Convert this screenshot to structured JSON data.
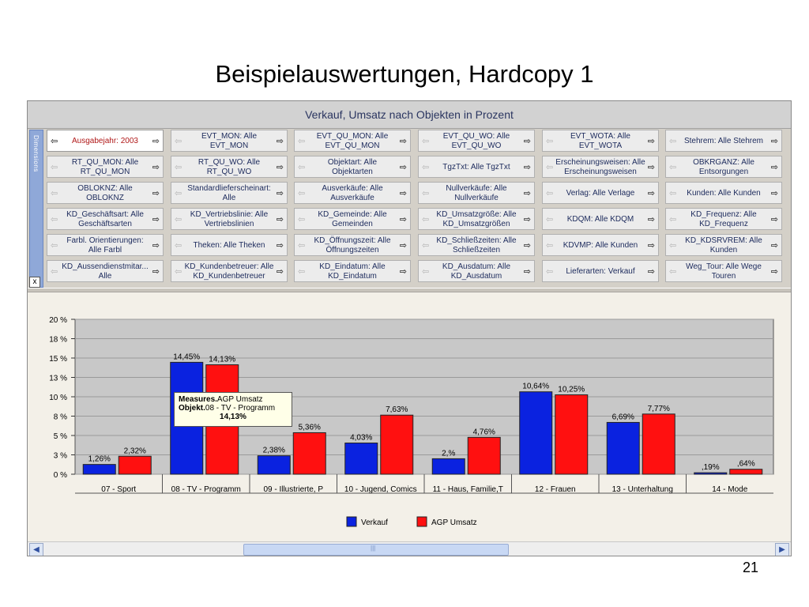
{
  "slide": {
    "title": "Beispielauswertungen, Hardcopy 1",
    "page_number": "21"
  },
  "window": {
    "title": "Verkauf, Umsatz nach Objekten in Prozent",
    "dimension_strip_label": "Dimensions",
    "close_label": "x"
  },
  "dimensions": [
    [
      "Ausgabejahr: 2003",
      "EVT_MON: Alle EVT_MON",
      "EVT_QU_MON: Alle EVT_QU_MON",
      "EVT_QU_WO: Alle EVT_QU_WO",
      "EVT_WOTA: Alle EVT_WOTA",
      "Stehrem: Alle Stehrem"
    ],
    [
      "RT_QU_MON: Alle RT_QU_MON",
      "RT_QU_WO: Alle RT_QU_WO",
      "Objektart: Alle Objektarten",
      "TgzTxt: Alle TgzTxt",
      "Erscheinungsweisen: Alle Erscheinungsweisen",
      "OBKRGANZ: Alle Entsorgungen"
    ],
    [
      "OBLOKNZ: Alle OBLOKNZ",
      "Standardlieferscheinart: Alle",
      "Ausverkäufe: Alle Ausverkäufe",
      "Nullverkäufe: Alle Nullverkäufe",
      "Verlag: Alle Verlage",
      "Kunden: Alle Kunden"
    ],
    [
      "KD_Geschäftsart: Alle Geschäftsarten",
      "KD_Vertriebslinie: Alle Vertriebslinien",
      "KD_Gemeinde: Alle Gemeinden",
      "KD_Umsatzgröße: Alle KD_Umsatzgrößen",
      "KDQM: Alle KDQM",
      "KD_Frequenz: Alle KD_Frequenz"
    ],
    [
      "Farbl. Orientierungen: Alle Farbl",
      "Theken: Alle Theken",
      "KD_Öffnungszeit: Alle Öffnungszeiten",
      "KD_Schließzeiten: Alle Schließzeiten",
      "KDVMP: Alle Kunden",
      "KD_KDSRVREM: Alle Kunden"
    ],
    [
      "KD_Aussendienstmitar... Alle",
      "KD_Kundenbetreuer: Alle KD_Kundenbetreuer",
      "KD_Eindatum: Alle KD_Eindatum",
      "KD_Ausdatum: Alle KD_Ausdatum",
      "Lieferarten: Verkauf",
      "Weg_Tour: Alle Wege Touren"
    ]
  ],
  "selected_dimension": "Ausgabejahr: 2003",
  "icons": {
    "left": "arrow-left-icon",
    "right": "arrow-right-icon"
  },
  "tooltip": {
    "line1_key": "Measures.",
    "line1_value": "AGP Umsatz",
    "line2_key": "Objekt.",
    "line2_value": "08 - TV - Programm",
    "value": "14,13%"
  },
  "scrollbar": {
    "thumb_grip": "|||"
  },
  "chart_data": {
    "type": "bar",
    "categories": [
      "07 - Sport",
      "08 - TV - Programm",
      "09 - Illustrierte, P",
      "10 - Jugend, Comics",
      "11 - Haus, Familie,T",
      "12 - Frauen",
      "13 - Unterhaltung",
      "14 - Mode"
    ],
    "series": [
      {
        "name": "Verkauf",
        "color": "#0a22e0",
        "values": [
          1.26,
          14.45,
          2.38,
          4.03,
          2.0,
          10.64,
          6.69,
          0.19
        ],
        "labels": [
          "1,26%",
          "14,45%",
          "2,38%",
          "4,03%",
          "2,%",
          "10,64%",
          "6,69%",
          ",19%"
        ]
      },
      {
        "name": "AGP Umsatz",
        "color": "#ff1010",
        "values": [
          2.32,
          14.13,
          5.36,
          7.63,
          4.76,
          10.25,
          7.77,
          0.64
        ],
        "labels": [
          "2,32%",
          "14,13%",
          "5,36%",
          "7,63%",
          "4,76%",
          "10,25%",
          "7,77%",
          ",64%"
        ]
      }
    ],
    "yticks": [
      0,
      2.5,
      5,
      7.5,
      10,
      12.5,
      15,
      17.5,
      20
    ],
    "ytick_labels": [
      "0 %",
      "3 %",
      "5 %",
      "8 %",
      "10 %",
      "13 %",
      "15 %",
      "18 %",
      "20 %"
    ],
    "ylim": [
      0,
      20
    ],
    "grid": true,
    "legend_position": "bottom"
  }
}
